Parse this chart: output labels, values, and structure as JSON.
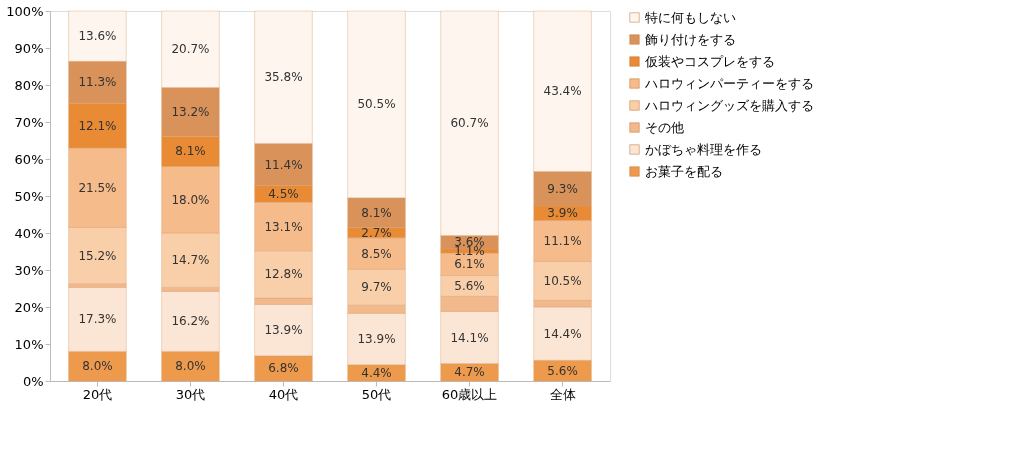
{
  "chart_data": {
    "type": "bar",
    "stacked": true,
    "categories": [
      "20代",
      "30代",
      "40代",
      "50代",
      "60歳以上",
      "全体"
    ],
    "series": [
      {
        "name": "お菓子を配る",
        "color": "#ee9a4d",
        "values": [
          8.0,
          8.0,
          6.8,
          4.4,
          4.7,
          5.6
        ],
        "value_labels": [
          "8.0%",
          "8.0%",
          "6.8%",
          "4.4%",
          "4.7%",
          "5.6%"
        ]
      },
      {
        "name": "かぼちゃ料理を作る",
        "color": "#fbe6d5",
        "values": [
          17.3,
          16.2,
          13.9,
          13.9,
          14.1,
          14.4
        ],
        "value_labels": [
          "17.3%",
          "16.2%",
          "13.9%",
          "13.9%",
          "14.1%",
          "14.4%"
        ]
      },
      {
        "name": "その他",
        "color": "#f2b98c",
        "values": [
          1.0,
          1.1,
          1.7,
          2.2,
          4.1,
          1.8
        ],
        "value_labels": [
          null,
          null,
          null,
          null,
          null,
          null
        ]
      },
      {
        "name": "ハロウィングッズを購入する",
        "color": "#f9cfa9",
        "values": [
          15.2,
          14.7,
          12.8,
          9.7,
          5.6,
          10.5
        ],
        "value_labels": [
          "15.2%",
          "14.7%",
          "12.8%",
          "9.7%",
          "5.6%",
          "10.5%"
        ]
      },
      {
        "name": "ハロウィンパーティーをする",
        "color": "#f5bb8a",
        "values": [
          21.5,
          18.0,
          13.1,
          8.5,
          6.1,
          11.1
        ],
        "value_labels": [
          "21.5%",
          "18.0%",
          "13.1%",
          "8.5%",
          "6.1%",
          "11.1%"
        ]
      },
      {
        "name": "仮装やコスプレをする",
        "color": "#e98a35",
        "values": [
          12.1,
          8.1,
          4.5,
          2.7,
          1.1,
          3.9
        ],
        "value_labels": [
          "12.1%",
          "8.1%",
          "4.5%",
          "2.7%",
          "1.1%",
          "3.9%"
        ]
      },
      {
        "name": "飾り付けをする",
        "color": "#d9935a",
        "values": [
          11.3,
          13.2,
          11.4,
          8.1,
          3.6,
          9.3
        ],
        "value_labels": [
          "11.3%",
          "13.2%",
          "11.4%",
          "8.1%",
          "3.6%",
          "9.3%"
        ]
      },
      {
        "name": "特に何もしない",
        "color": "#fdf5ee",
        "values": [
          13.6,
          20.7,
          35.8,
          50.5,
          60.7,
          43.4
        ],
        "value_labels": [
          "13.6%",
          "20.7%",
          "35.8%",
          "50.5%",
          "60.7%",
          "43.4%"
        ]
      }
    ],
    "ylim": [
      0,
      100
    ],
    "yticks": [
      {
        "value": 0,
        "label": "0%"
      },
      {
        "value": 10,
        "label": "10%"
      },
      {
        "value": 20,
        "label": "20%"
      },
      {
        "value": 30,
        "label": "30%"
      },
      {
        "value": 40,
        "label": "40%"
      },
      {
        "value": 50,
        "label": "50%"
      },
      {
        "value": 60,
        "label": "60%"
      },
      {
        "value": 70,
        "label": "70%"
      },
      {
        "value": 80,
        "label": "80%"
      },
      {
        "value": 90,
        "label": "90%"
      },
      {
        "value": 100,
        "label": "100%"
      }
    ],
    "grid": false,
    "legend": "right"
  }
}
